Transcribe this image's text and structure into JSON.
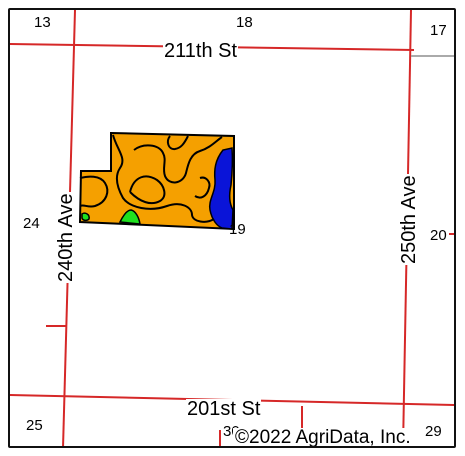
{
  "roads": {
    "north": "211th St",
    "south": "201st St",
    "west": "240th Ave",
    "east": "250th Ave"
  },
  "sections": {
    "s13": "13",
    "s18": "18",
    "s17": "17",
    "s24": "24",
    "s19": "19",
    "s20": "20",
    "s25": "25",
    "s30": "30",
    "s29": "29"
  },
  "copyright": "©2022 AgriData, Inc.",
  "colors": {
    "road_line": "#d62828",
    "secondary_line": "#aaaaaa",
    "soil_main": "#f5a000",
    "soil_water": "#0a14d8",
    "soil_minor": "#1fe01f",
    "outline": "#000000"
  }
}
